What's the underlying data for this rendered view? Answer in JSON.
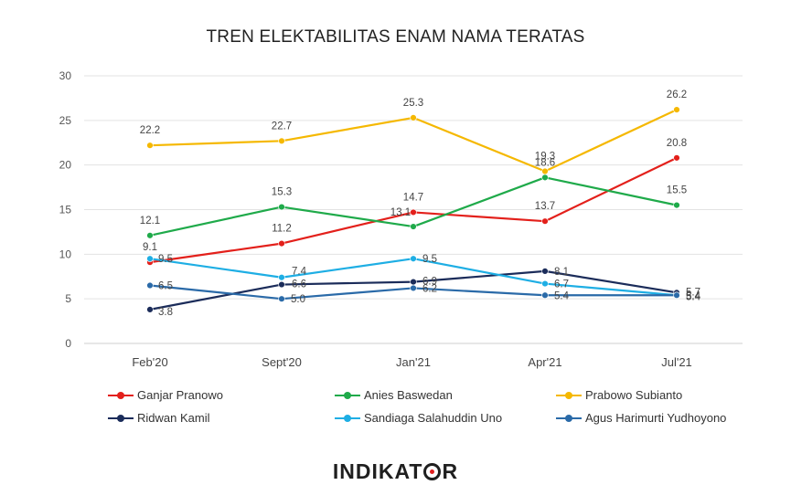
{
  "chart_data": {
    "type": "line",
    "title": "TREN ELEKTABILITAS ENAM NAMA TERATAS",
    "categories": [
      "Feb'20",
      "Sept'20",
      "Jan'21",
      "Apr'21",
      "Jul'21"
    ],
    "ylim": [
      0,
      30
    ],
    "yticks": [
      "0",
      "5",
      "10",
      "15",
      "20",
      "25",
      "30"
    ],
    "grid": true,
    "legend_position": "bottom",
    "series": [
      {
        "name": "Ganjar Pranowo",
        "color": "#e3201b",
        "values": [
          9.1,
          11.2,
          14.7,
          13.7,
          20.8
        ],
        "labels": [
          "9.1",
          "11.2",
          "14.7",
          "13.7",
          "20.8"
        ]
      },
      {
        "name": "Anies Baswedan",
        "color": "#1faa4a",
        "values": [
          12.1,
          15.3,
          13.1,
          18.6,
          15.5
        ],
        "labels": [
          "12.1",
          "15.3",
          "13.1",
          "18.6",
          "15.5"
        ]
      },
      {
        "name": "Prabowo Subianto",
        "color": "#f5b800",
        "values": [
          22.2,
          22.7,
          25.3,
          19.3,
          26.2
        ],
        "labels": [
          "22.2",
          "22.7",
          "25.3",
          "19.3",
          "26.2"
        ]
      },
      {
        "name": "Ridwan Kamil",
        "color": "#1b2c5a",
        "values": [
          3.8,
          6.6,
          6.9,
          8.1,
          5.7
        ],
        "labels": [
          "3.8",
          "6.6",
          "6.9",
          "8.1",
          "5.7"
        ]
      },
      {
        "name": "Sandiaga Salahuddin Uno",
        "color": "#1eaee4",
        "values": [
          9.5,
          7.4,
          9.5,
          6.7,
          5.4
        ],
        "labels": [
          "9.5",
          "7.4",
          "9.5",
          "6.7",
          "5.4"
        ]
      },
      {
        "name": "Agus Harimurti Yudhoyono",
        "color": "#2a6aa8",
        "values": [
          6.5,
          5.0,
          6.2,
          5.4,
          5.4
        ],
        "labels": [
          "6.5",
          "5.0",
          "6.2",
          "5.4",
          "5.4"
        ]
      }
    ]
  },
  "logo": {
    "text_before": "INDIKAT",
    "text_after": "R"
  }
}
